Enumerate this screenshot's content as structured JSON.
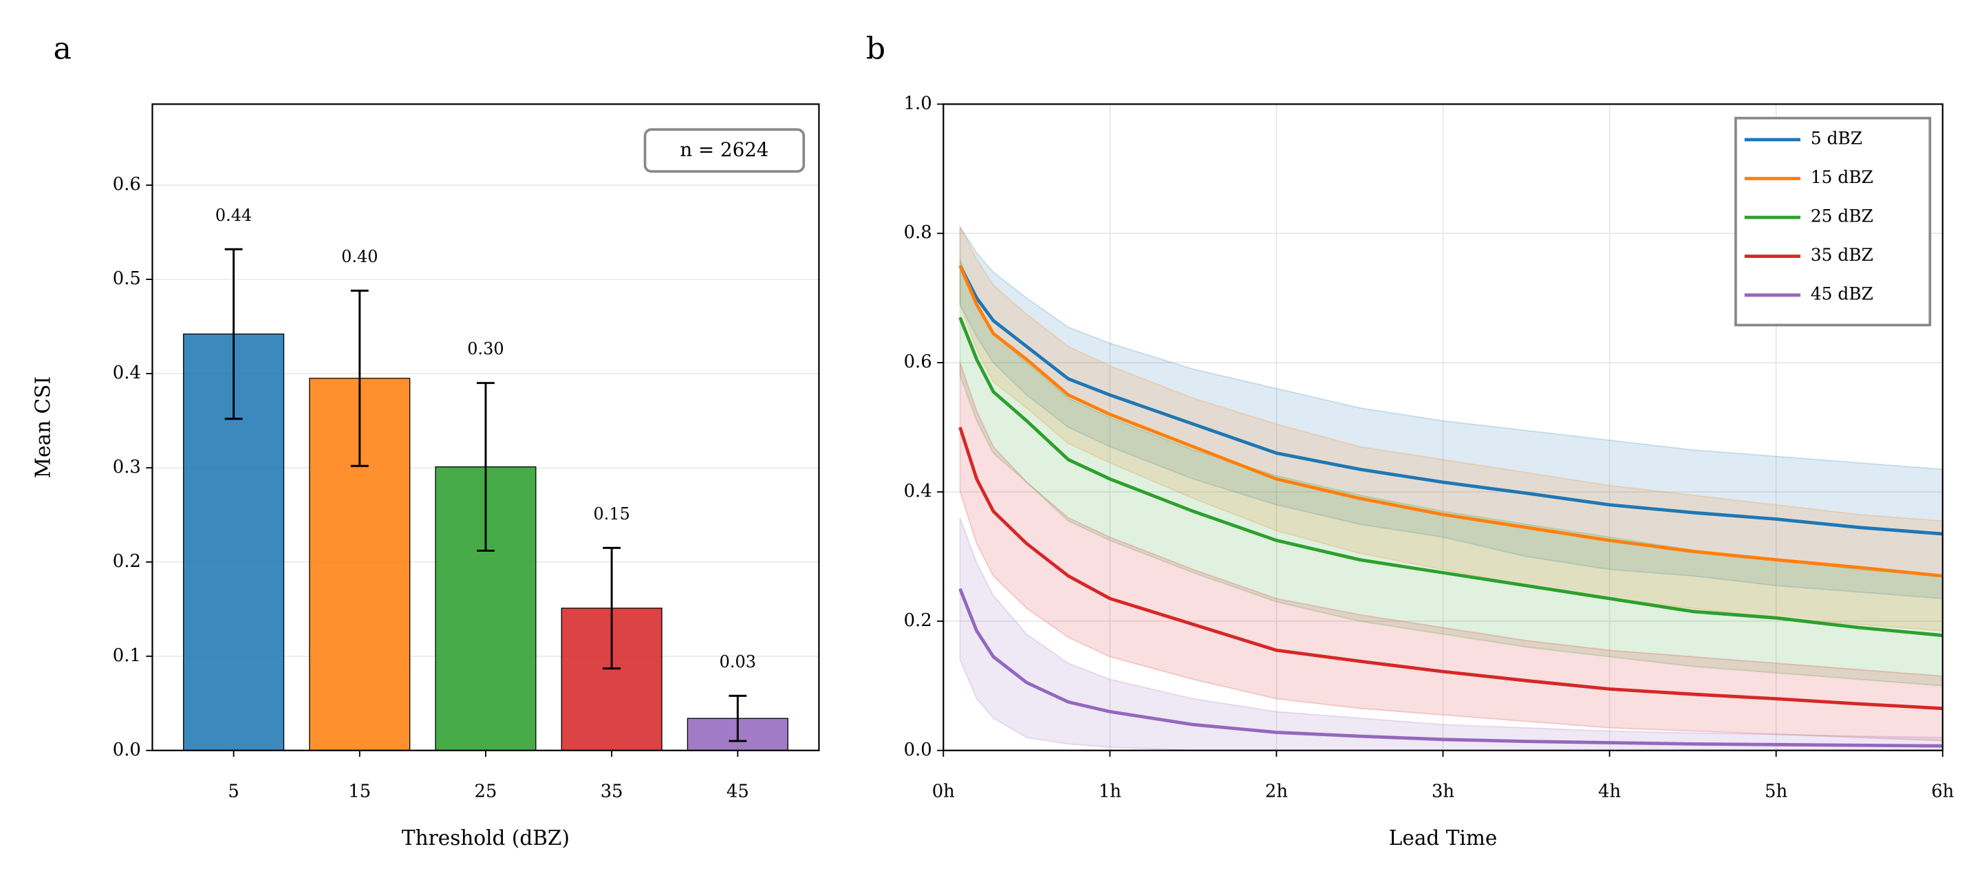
{
  "chart_data": [
    {
      "type": "bar",
      "panel_label": "a",
      "xlabel": "Threshold (dBZ)",
      "ylabel": "Mean CSI",
      "annotation": "n = 2624",
      "categories": [
        "5",
        "15",
        "25",
        "35",
        "45"
      ],
      "values": [
        0.442,
        0.395,
        0.301,
        0.151,
        0.034
      ],
      "errors": [
        0.09,
        0.093,
        0.089,
        0.064,
        0.024
      ],
      "value_labels": [
        "0.44",
        "0.40",
        "0.30",
        "0.15",
        "0.03"
      ],
      "colors": [
        "#1f77b4",
        "#ff7f0e",
        "#2ca02c",
        "#d62728",
        "#9467bd"
      ],
      "ylim": [
        0,
        0.686
      ],
      "yticks": [
        {
          "value": 0,
          "label": "0.0"
        },
        0.1,
        0.2,
        0.3,
        0.4,
        0.5,
        0.6
      ],
      "grid": "y"
    },
    {
      "type": "line",
      "panel_label": "b",
      "xlabel": "Lead Time",
      "legend": "upper right",
      "x": [
        0.1,
        0.2,
        0.3,
        0.5,
        0.75,
        1,
        1.5,
        2,
        2.5,
        3,
        3.5,
        4,
        4.5,
        5,
        5.5,
        6
      ],
      "series": [
        {
          "name": "5 dBZ",
          "color": "#1f77b4",
          "values": [
            0.75,
            0.7,
            0.665,
            0.625,
            0.575,
            0.55,
            0.505,
            0.46,
            0.435,
            0.415,
            0.398,
            0.38,
            0.368,
            0.358,
            0.345,
            0.335
          ],
          "upper": [
            0.81,
            0.77,
            0.74,
            0.7,
            0.655,
            0.63,
            0.59,
            0.56,
            0.53,
            0.51,
            0.495,
            0.48,
            0.465,
            0.455,
            0.445,
            0.435
          ],
          "lower": [
            0.69,
            0.64,
            0.6,
            0.55,
            0.5,
            0.47,
            0.42,
            0.38,
            0.35,
            0.33,
            0.3,
            0.28,
            0.27,
            0.255,
            0.245,
            0.235
          ]
        },
        {
          "name": "15 dBZ",
          "color": "#ff7f0e",
          "values": [
            0.75,
            0.69,
            0.645,
            0.605,
            0.55,
            0.52,
            0.47,
            0.42,
            0.39,
            0.365,
            0.345,
            0.325,
            0.308,
            0.295,
            0.283,
            0.27
          ],
          "upper": [
            0.81,
            0.76,
            0.72,
            0.675,
            0.625,
            0.595,
            0.545,
            0.505,
            0.47,
            0.45,
            0.43,
            0.41,
            0.395,
            0.38,
            0.365,
            0.355
          ],
          "lower": [
            0.69,
            0.62,
            0.57,
            0.53,
            0.475,
            0.445,
            0.39,
            0.34,
            0.305,
            0.28,
            0.255,
            0.235,
            0.22,
            0.205,
            0.195,
            0.185
          ]
        },
        {
          "name": "25 dBZ",
          "color": "#2ca02c",
          "values": [
            0.67,
            0.605,
            0.555,
            0.51,
            0.45,
            0.42,
            0.37,
            0.325,
            0.295,
            0.275,
            0.255,
            0.235,
            0.215,
            0.205,
            0.19,
            0.178
          ],
          "upper": [
            0.76,
            0.69,
            0.645,
            0.6,
            0.545,
            0.515,
            0.465,
            0.425,
            0.395,
            0.37,
            0.35,
            0.33,
            0.31,
            0.295,
            0.28,
            0.27
          ],
          "lower": [
            0.58,
            0.51,
            0.46,
            0.415,
            0.355,
            0.325,
            0.275,
            0.23,
            0.2,
            0.18,
            0.16,
            0.145,
            0.13,
            0.12,
            0.11,
            0.1
          ]
        },
        {
          "name": "35 dBZ",
          "color": "#d62728",
          "values": [
            0.5,
            0.42,
            0.37,
            0.32,
            0.27,
            0.235,
            0.195,
            0.155,
            0.138,
            0.122,
            0.108,
            0.095,
            0.087,
            0.08,
            0.072,
            0.065
          ],
          "upper": [
            0.6,
            0.525,
            0.47,
            0.415,
            0.36,
            0.33,
            0.28,
            0.235,
            0.21,
            0.19,
            0.17,
            0.155,
            0.145,
            0.135,
            0.125,
            0.115
          ],
          "lower": [
            0.4,
            0.32,
            0.27,
            0.22,
            0.175,
            0.145,
            0.11,
            0.08,
            0.065,
            0.055,
            0.045,
            0.035,
            0.03,
            0.025,
            0.02,
            0.015
          ]
        },
        {
          "name": "45 dBZ",
          "color": "#9467bd",
          "values": [
            0.25,
            0.185,
            0.145,
            0.105,
            0.075,
            0.06,
            0.04,
            0.028,
            0.022,
            0.017,
            0.014,
            0.012,
            0.01,
            0.009,
            0.008,
            0.007
          ],
          "upper": [
            0.36,
            0.29,
            0.24,
            0.18,
            0.135,
            0.11,
            0.08,
            0.06,
            0.05,
            0.04,
            0.035,
            0.03,
            0.027,
            0.025,
            0.022,
            0.02
          ],
          "lower": [
            0.14,
            0.08,
            0.05,
            0.02,
            0.01,
            0.005,
            0,
            0,
            0,
            0,
            0,
            0,
            0,
            0,
            0,
            0
          ]
        }
      ],
      "xlim": [
        0,
        6
      ],
      "xticks": [
        {
          "value": 0,
          "label": "0h"
        },
        {
          "value": 1,
          "label": "1h"
        },
        {
          "value": 2,
          "label": "2h"
        },
        {
          "value": 3,
          "label": "3h"
        },
        {
          "value": 4,
          "label": "4h"
        },
        {
          "value": 5,
          "label": "5h"
        },
        {
          "value": 6,
          "label": "6h"
        }
      ],
      "ylim": [
        0,
        1
      ],
      "yticks": [
        {
          "value": 0,
          "label": "0.0"
        },
        0.2,
        0.4,
        0.6,
        0.8,
        {
          "value": 1,
          "label": "1.0"
        }
      ],
      "grid": "both"
    }
  ]
}
